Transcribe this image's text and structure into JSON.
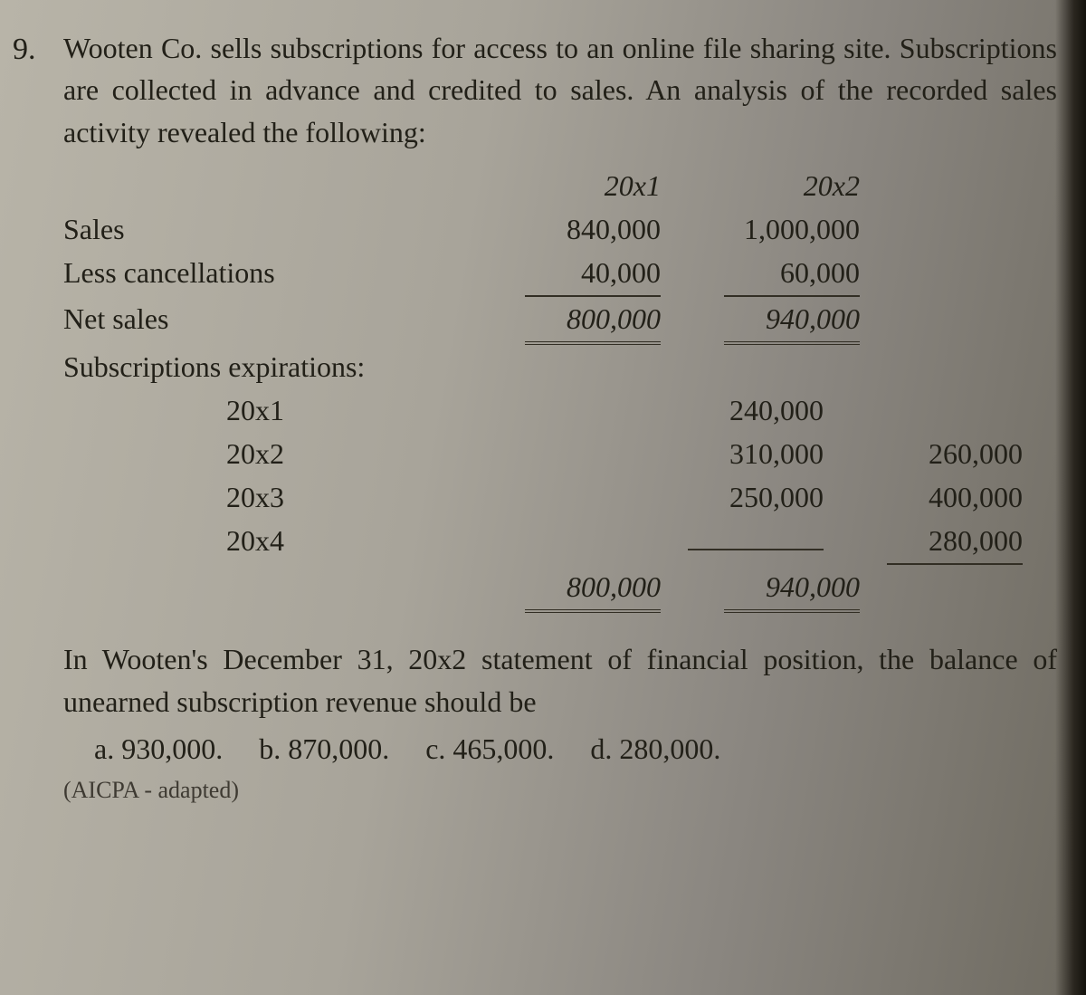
{
  "question_number": "9.",
  "problem_text": "Wooten Co. sells subscriptions for access to an online file sharing site. Subscriptions are collected in advance and credited to sales. An analysis of the recorded sales activity revealed the following:",
  "col_headers": {
    "y1": "20x1",
    "y2": "20x2"
  },
  "lines": {
    "sales": {
      "label": "Sales",
      "y1": "840,000",
      "y2": "1,000,000"
    },
    "less_cancel": {
      "label": "Less cancellations",
      "y1": "40,000",
      "y2": "60,000"
    },
    "net_sales": {
      "label": "Net sales",
      "y1": "800,000",
      "y2": "940,000"
    },
    "sub_exp_hdr": {
      "label": "Subscriptions expirations:"
    },
    "exp1": {
      "label": "20x1",
      "y1": "240,000",
      "y2": ""
    },
    "exp2": {
      "label": "20x2",
      "y1": "310,000",
      "y2": "260,000"
    },
    "exp3": {
      "label": "20x3",
      "y1": "250,000",
      "y2": "400,000"
    },
    "exp4": {
      "label": "20x4",
      "y1": "",
      "y2": "280,000"
    },
    "tot": {
      "y1": "800,000",
      "y2": "940,000"
    }
  },
  "question_prompt": "In Wooten's December 31, 20x2 statement of financial position, the balance of unearned subscription revenue should be",
  "choices": {
    "a": "a. 930,000.",
    "b": "b. 870,000.",
    "c": "c. 465,000.",
    "d": "d. 280,000."
  },
  "source": "(AICPA - adapted)",
  "colors": {
    "text": "#222018",
    "rule": "#322e24",
    "bg_left": "#b8b4a8",
    "bg_right": "#6e6a60"
  },
  "fonts": {
    "body_pt": 32,
    "family": "Palatino / Book Antiqua serif"
  }
}
